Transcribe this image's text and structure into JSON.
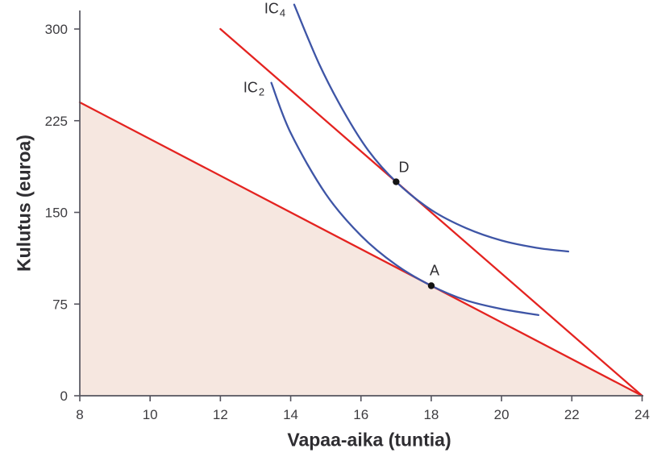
{
  "chart_data": {
    "type": "line",
    "title": "",
    "xlabel": "Vapaa-aika (tuntia)",
    "ylabel": "Kulutus (euroa)",
    "grid": false,
    "legend": false,
    "x_axis": {
      "min": 8,
      "max": 24,
      "ticks": [
        8,
        10,
        12,
        14,
        16,
        18,
        20,
        22,
        24
      ]
    },
    "y_axis": {
      "min": 0,
      "max": 300,
      "ticks": [
        0,
        75,
        150,
        225,
        300
      ]
    },
    "colors": {
      "budget_line": "#e42320",
      "indifference_curve": "#3e55a6",
      "feasible_set_fill": "#f6e7e0",
      "axis": "#55545e",
      "point": "#141414"
    },
    "shaded_region": {
      "name": "feasible-set",
      "fill": "#f6e7e0",
      "vertices": [
        [
          8,
          0
        ],
        [
          8,
          240
        ],
        [
          24,
          0
        ]
      ]
    },
    "series": [
      {
        "name": "budget-constraint-through-A",
        "type": "straight-line",
        "color": "#e42320",
        "points": [
          [
            8,
            240
          ],
          [
            24,
            0
          ]
        ]
      },
      {
        "name": "budget-constraint-through-D",
        "type": "straight-line",
        "color": "#e42320",
        "points": [
          [
            12,
            300
          ],
          [
            24,
            0
          ]
        ]
      },
      {
        "name": "indifference-curve-IC2",
        "type": "curve",
        "color": "#3e55a6",
        "label_text": "IC",
        "label_sub": "2",
        "points": [
          [
            13.45,
            256
          ],
          [
            14,
            215
          ],
          [
            15,
            165
          ],
          [
            16,
            131
          ],
          [
            17,
            107
          ],
          [
            18,
            90
          ],
          [
            19,
            78
          ],
          [
            20,
            71
          ],
          [
            21.05,
            66
          ]
        ]
      },
      {
        "name": "indifference-curve-IC4",
        "type": "curve",
        "color": "#3e55a6",
        "label_text": "IC",
        "label_sub": "4",
        "points": [
          [
            14.1,
            320
          ],
          [
            14.8,
            272
          ],
          [
            15.5,
            233
          ],
          [
            16.2,
            201
          ],
          [
            17,
            175
          ],
          [
            18,
            152
          ],
          [
            19,
            137
          ],
          [
            20,
            127
          ],
          [
            21,
            121
          ],
          [
            21.9,
            118
          ]
        ]
      }
    ],
    "points": [
      {
        "label": "A",
        "x": 18,
        "y": 90
      },
      {
        "label": "D",
        "x": 17,
        "y": 175
      }
    ]
  }
}
